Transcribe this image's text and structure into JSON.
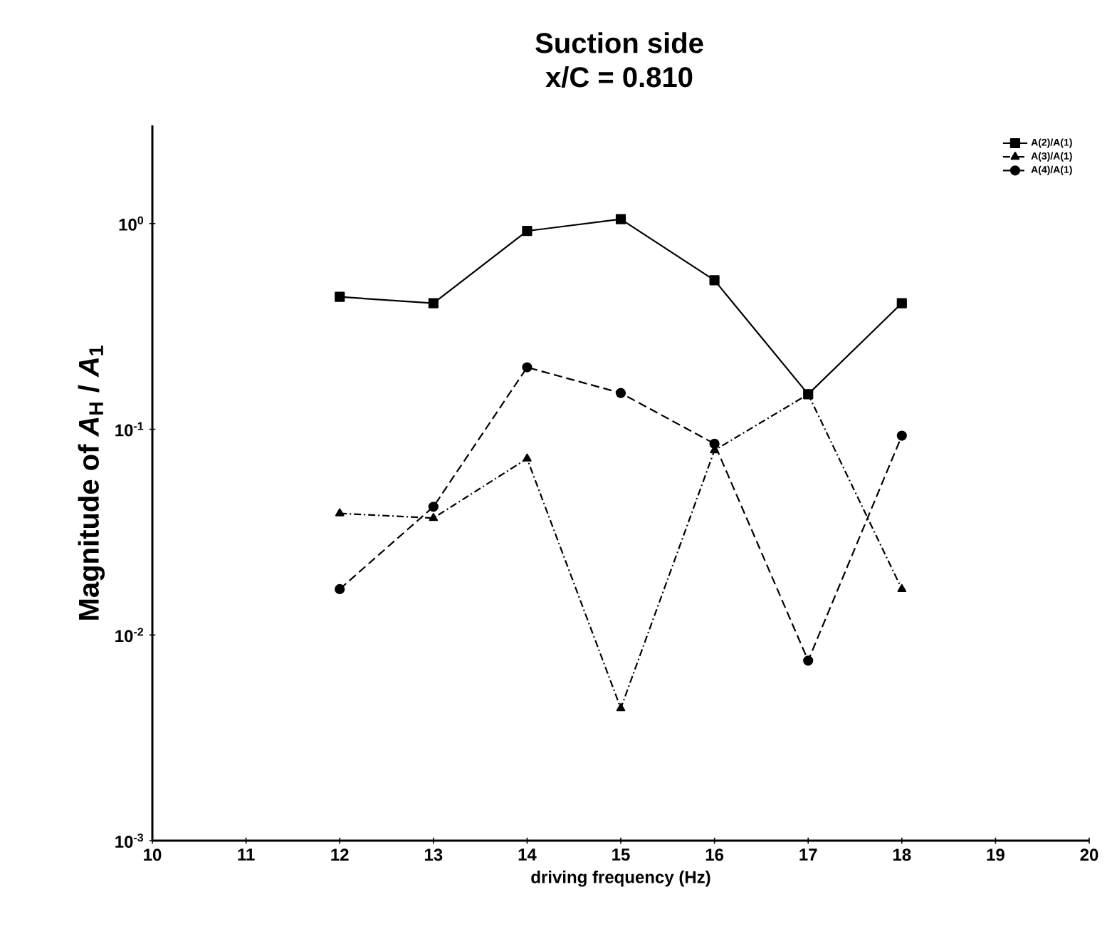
{
  "chart_data": {
    "type": "line",
    "title": "Suction side",
    "subtitle": "x/C = 0.810",
    "xlabel": "driving frequency (Hz)",
    "ylabel": "Magnitude of *A*$_{H}$ / *A*$_{1}$",
    "x": [
      12,
      13,
      14,
      15,
      16,
      17,
      18
    ],
    "series": [
      {
        "name": "A(2)/A(1)",
        "color": "#000000",
        "marker": "square",
        "line_style": "solid",
        "values": [
          0.44,
          0.41,
          0.92,
          1.05,
          0.53,
          0.148,
          0.41
        ]
      },
      {
        "name": "A(3)/A(1)",
        "color": "#000000",
        "marker": "triangle",
        "line_style": "dotted",
        "values": [
          0.039,
          0.037,
          0.072,
          0.0044,
          0.079,
          0.148,
          0.0167
        ]
      },
      {
        "name": "A(4)/A(1)",
        "color": "#000000",
        "marker": "circle",
        "line_style": "dashed",
        "values": [
          0.0167,
          0.042,
          0.2,
          0.15,
          0.085,
          0.0075,
          0.093
        ]
      }
    ],
    "log": "y",
    "grid": false,
    "legend": "top right",
    "xlim": [
      10,
      20
    ],
    "ylim": [
      0.001,
      3
    ],
    "xticks": [
      10,
      11,
      12,
      13,
      14,
      15,
      16,
      17,
      18,
      19,
      20
    ],
    "yticks": [
      {
        "value": 1,
        "label": "10$^{0}$"
      },
      {
        "value": 0.1,
        "label": "10$^{-1}$"
      },
      {
        "value": 0.01,
        "label": "10$^{-2}$"
      },
      {
        "value": 0.001,
        "label": "10$^{-3}$"
      }
    ]
  }
}
